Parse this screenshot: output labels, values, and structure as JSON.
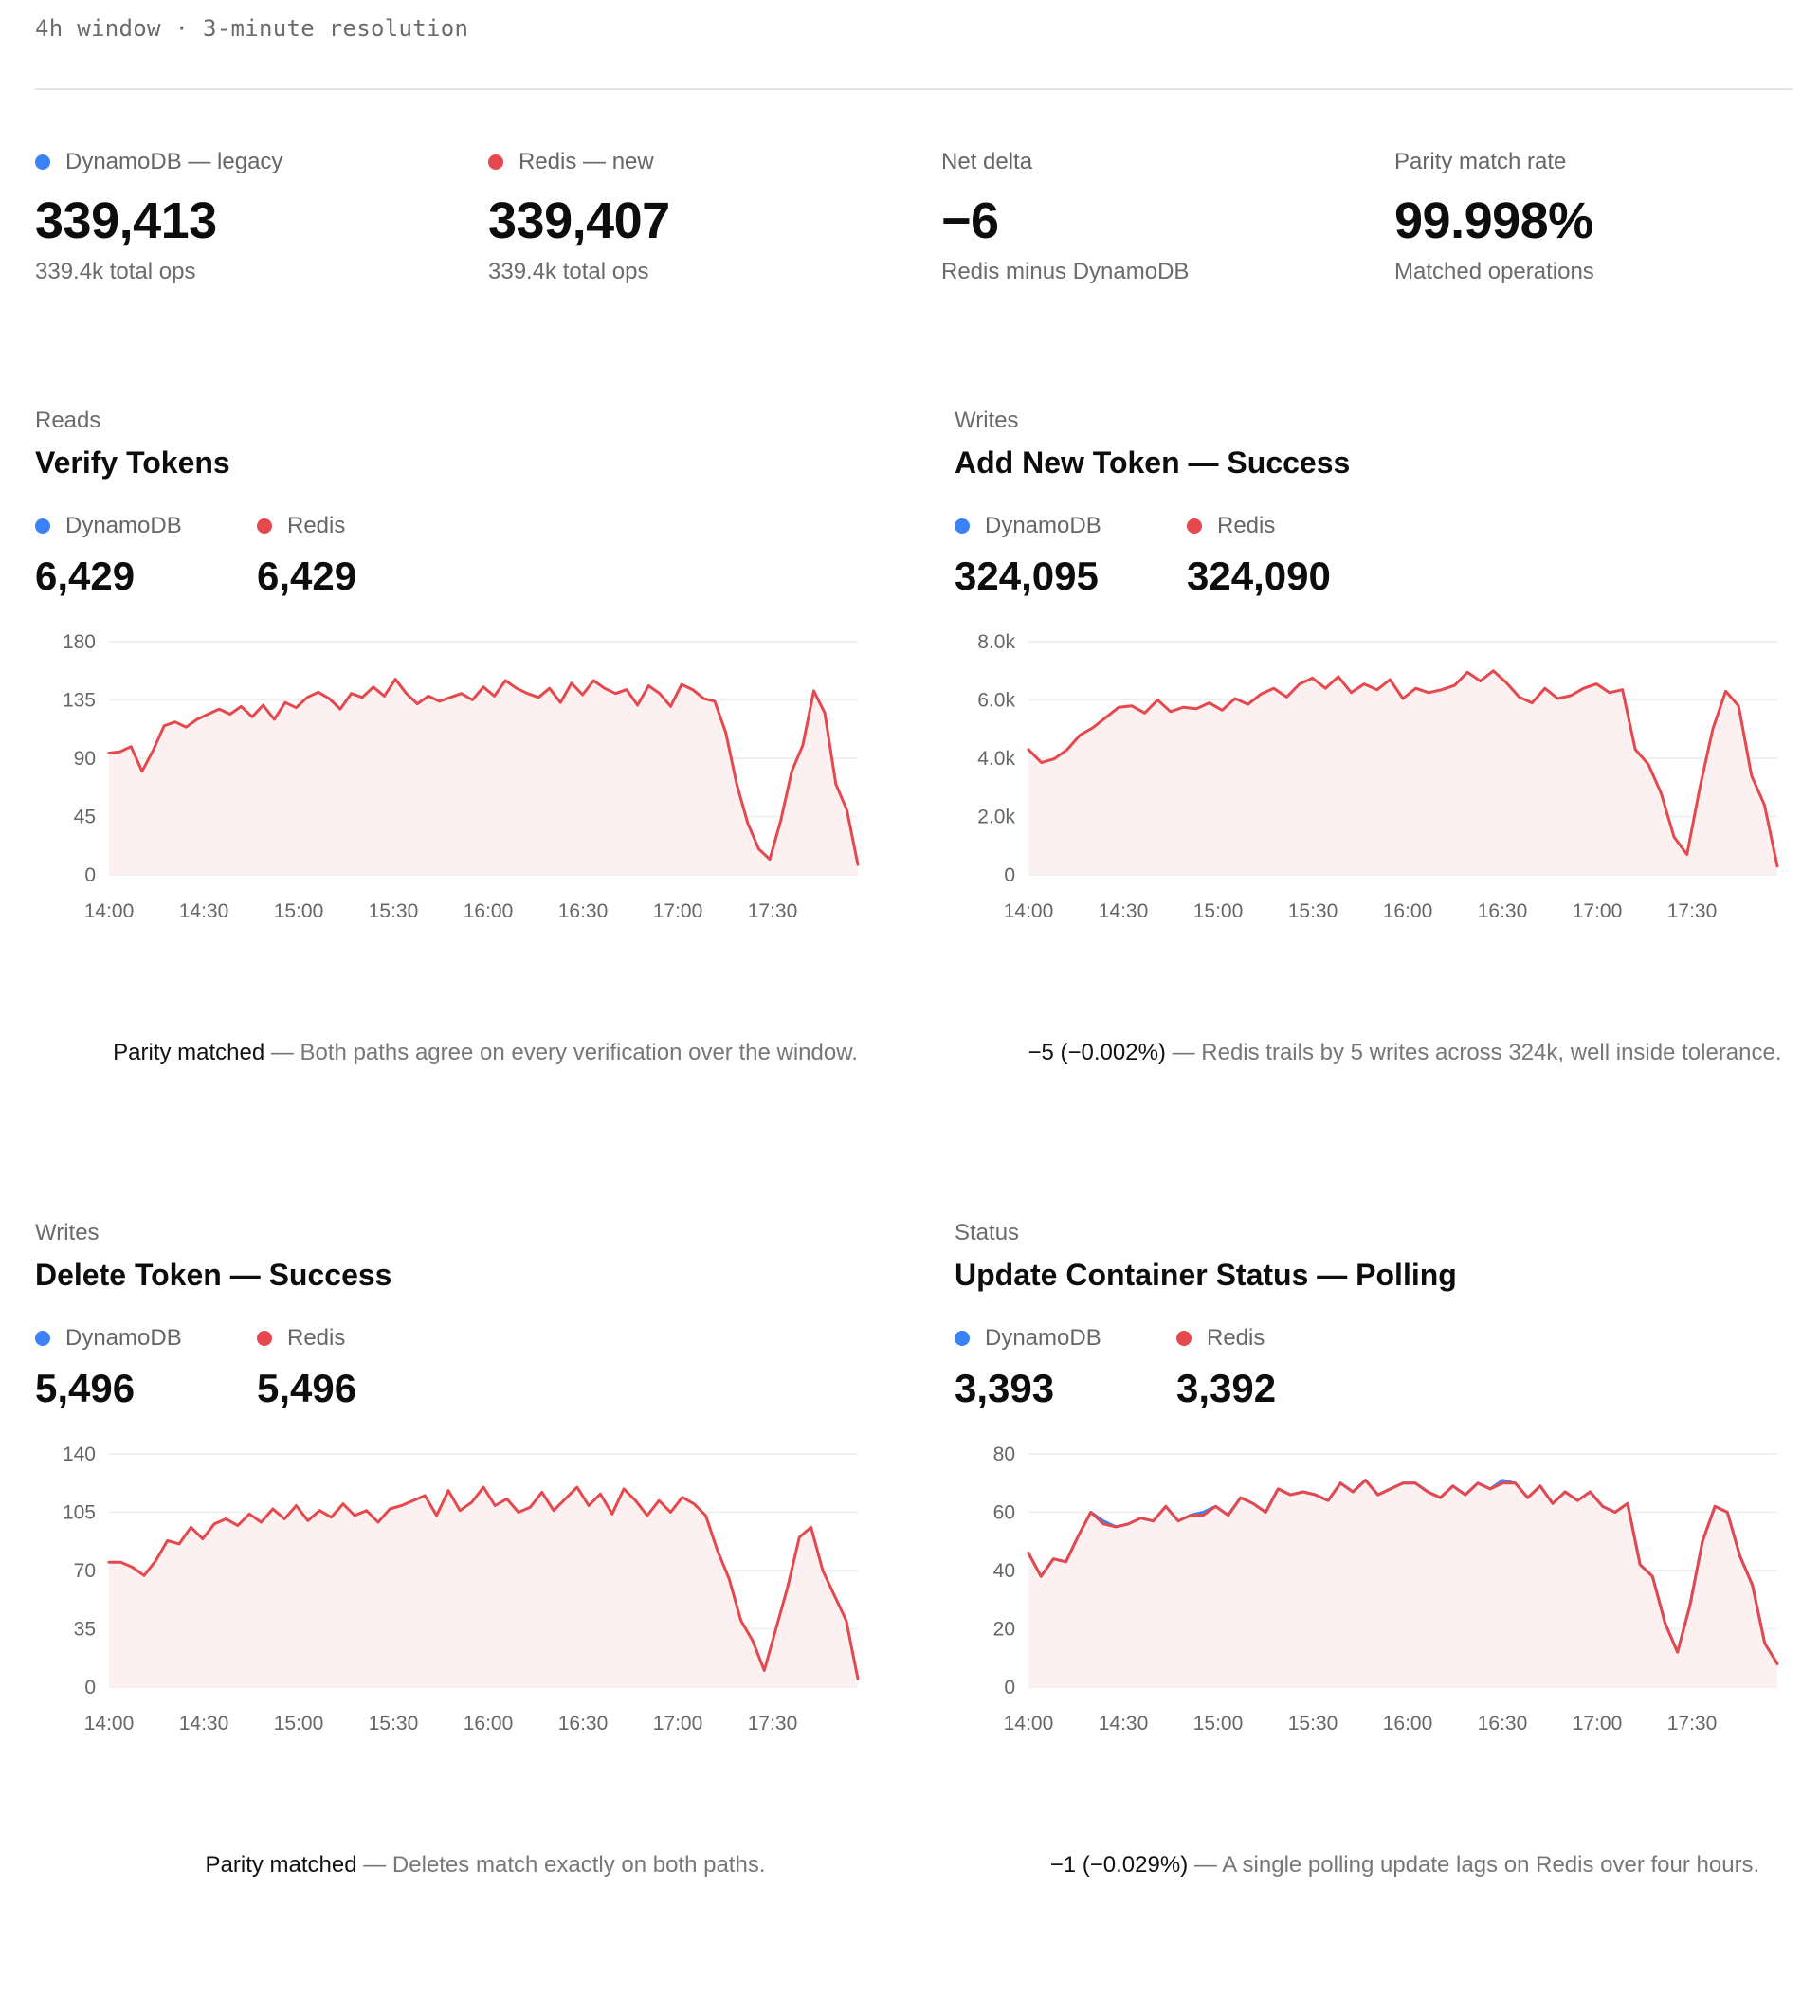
{
  "header": {
    "caption": "4h window · 3-minute resolution"
  },
  "colors": {
    "dynamo": "#3b82f6",
    "redis": "#e5484d",
    "fill": "#fdf0f1",
    "grid": "#ececec"
  },
  "summary": [
    {
      "label": "DynamoDB — legacy",
      "dot": "dynamo",
      "value": "339,413",
      "sub": "339.4k total ops"
    },
    {
      "label": "Redis — new",
      "dot": "redis",
      "value": "339,407",
      "sub": "339.4k total ops"
    },
    {
      "label": "Net delta",
      "dot": "",
      "value": "−6",
      "sub": "Redis minus DynamoDB"
    },
    {
      "label": "Parity match rate",
      "dot": "",
      "value": "99.998%",
      "sub": "Matched operations"
    }
  ],
  "panels": [
    {
      "category": "Reads",
      "title": "Verify Tokens",
      "dynamo_label": "DynamoDB",
      "dynamo_value": "6,429",
      "redis_label": "Redis",
      "redis_value": "6,429",
      "note_strong": "Parity matched",
      "note_text": " — Both paths agree on every verification over the window."
    },
    {
      "category": "Writes",
      "title": "Add New Token — Success",
      "dynamo_label": "DynamoDB",
      "dynamo_value": "324,095",
      "redis_label": "Redis",
      "redis_value": "324,090",
      "note_strong": "−5 (−0.002%)",
      "note_text": " — Redis trails by 5 writes across 324k, well inside tolerance."
    },
    {
      "category": "Writes",
      "title": "Delete Token — Success",
      "dynamo_label": "DynamoDB",
      "dynamo_value": "5,496",
      "redis_label": "Redis",
      "redis_value": "5,496",
      "note_strong": "Parity matched",
      "note_text": " — Deletes match exactly on both paths."
    },
    {
      "category": "Status",
      "title": "Update Container Status — Polling",
      "dynamo_label": "DynamoDB",
      "dynamo_value": "3,393",
      "redis_label": "Redis",
      "redis_value": "3,392",
      "note_strong": "−1 (−0.029%)",
      "note_text": " — A single polling update lags on Redis over four hours."
    }
  ],
  "chart_data": [
    {
      "type": "area",
      "title": "Verify Tokens",
      "xlabel": "",
      "ylabel": "",
      "x_ticks": [
        "14:00",
        "14:30",
        "15:00",
        "15:30",
        "16:00",
        "16:30",
        "17:00",
        "17:30"
      ],
      "ylim": [
        0,
        180
      ],
      "y_ticks": [
        0,
        45,
        90,
        135,
        180
      ],
      "y_tick_labels": [
        "0",
        "45",
        "90",
        "135",
        "180"
      ],
      "grid": true,
      "x_range_minutes": [
        0,
        237
      ],
      "series": [
        {
          "values": [
            94,
            95,
            99,
            80,
            96,
            115,
            118,
            114,
            120,
            124,
            128,
            124,
            130,
            122,
            131,
            120,
            133,
            129,
            137,
            141,
            136,
            128,
            140,
            137,
            145,
            138,
            151,
            140,
            132,
            138,
            134,
            137,
            140,
            135,
            145,
            138,
            150,
            144,
            140,
            137,
            144,
            133,
            148,
            139,
            150,
            144,
            140,
            143,
            131,
            146,
            140,
            130,
            147,
            143,
            136,
            134,
            110,
            70,
            40,
            20,
            12,
            42,
            80,
            100,
            142,
            125,
            70,
            50,
            8
          ]
        }
      ]
    },
    {
      "type": "area",
      "title": "Add New Token — Success",
      "xlabel": "",
      "ylabel": "",
      "x_ticks": [
        "14:00",
        "14:30",
        "15:00",
        "15:30",
        "16:00",
        "16:30",
        "17:00",
        "17:30"
      ],
      "ylim": [
        0,
        8000
      ],
      "y_ticks": [
        0,
        2000,
        4000,
        6000,
        8000
      ],
      "y_tick_labels": [
        "0",
        "2.0k",
        "4.0k",
        "6.0k",
        "8.0k"
      ],
      "grid": true,
      "x_range_minutes": [
        0,
        237
      ],
      "series": [
        {
          "values": [
            4300,
            3850,
            3980,
            4300,
            4800,
            5050,
            5400,
            5750,
            5800,
            5550,
            6000,
            5600,
            5750,
            5700,
            5900,
            5650,
            6050,
            5850,
            6200,
            6400,
            6100,
            6550,
            6750,
            6400,
            6800,
            6250,
            6550,
            6350,
            6700,
            6050,
            6400,
            6250,
            6350,
            6500,
            6950,
            6650,
            7000,
            6600,
            6100,
            5900,
            6400,
            6050,
            6150,
            6400,
            6550,
            6250,
            6350,
            4300,
            3800,
            2800,
            1300,
            700,
            3000,
            5000,
            6300,
            5800,
            3400,
            2400,
            300
          ]
        }
      ]
    },
    {
      "type": "area",
      "title": "Delete Token — Success",
      "xlabel": "",
      "ylabel": "",
      "x_ticks": [
        "14:00",
        "14:30",
        "15:00",
        "15:30",
        "16:00",
        "16:30",
        "17:00",
        "17:30"
      ],
      "ylim": [
        0,
        140
      ],
      "y_ticks": [
        0,
        35,
        70,
        105,
        140
      ],
      "y_tick_labels": [
        "0",
        "35",
        "70",
        "105",
        "140"
      ],
      "grid": true,
      "x_range_minutes": [
        0,
        237
      ],
      "series": [
        {
          "values": [
            75,
            75,
            72,
            67,
            76,
            88,
            86,
            96,
            89,
            98,
            101,
            97,
            104,
            99,
            107,
            101,
            109,
            100,
            106,
            102,
            110,
            103,
            106,
            99,
            107,
            109,
            112,
            115,
            103,
            118,
            106,
            111,
            120,
            109,
            113,
            105,
            108,
            117,
            106,
            113,
            120,
            109,
            116,
            104,
            119,
            112,
            103,
            112,
            105,
            114,
            110,
            103,
            82,
            65,
            40,
            28,
            10,
            35,
            60,
            90,
            96,
            70,
            55,
            40,
            5
          ]
        }
      ]
    },
    {
      "type": "area",
      "title": "Update Container Status — Polling",
      "xlabel": "",
      "ylabel": "",
      "x_ticks": [
        "14:00",
        "14:30",
        "15:00",
        "15:30",
        "16:00",
        "16:30",
        "17:00",
        "17:30"
      ],
      "ylim": [
        0,
        80
      ],
      "y_ticks": [
        0,
        20,
        40,
        60,
        80
      ],
      "y_tick_labels": [
        "0",
        "20",
        "40",
        "60",
        "80"
      ],
      "grid": true,
      "x_range_minutes": [
        0,
        237
      ],
      "series": [
        {
          "name": "DynamoDB",
          "values": [
            46,
            38,
            44,
            43,
            52,
            60,
            57,
            55,
            56,
            58,
            57,
            62,
            57,
            59,
            60,
            62,
            59,
            65,
            63,
            60,
            68,
            66,
            67,
            66,
            64,
            70,
            67,
            71,
            66,
            68,
            70,
            70,
            67,
            65,
            69,
            66,
            70,
            68,
            71,
            70,
            65,
            69,
            63,
            67,
            64,
            67,
            62,
            60,
            63,
            42,
            38,
            22,
            12,
            28,
            50,
            62,
            60,
            45,
            35,
            15,
            8
          ]
        },
        {
          "name": "Redis",
          "values": [
            46,
            38,
            44,
            43,
            52,
            60,
            56,
            55,
            56,
            58,
            57,
            62,
            57,
            59,
            59,
            62,
            59,
            65,
            63,
            60,
            68,
            66,
            67,
            66,
            64,
            70,
            67,
            71,
            66,
            68,
            70,
            70,
            67,
            65,
            69,
            66,
            70,
            68,
            70,
            70,
            65,
            69,
            63,
            67,
            64,
            67,
            62,
            60,
            63,
            42,
            38,
            22,
            12,
            28,
            50,
            62,
            60,
            45,
            35,
            15,
            8
          ]
        }
      ]
    }
  ]
}
